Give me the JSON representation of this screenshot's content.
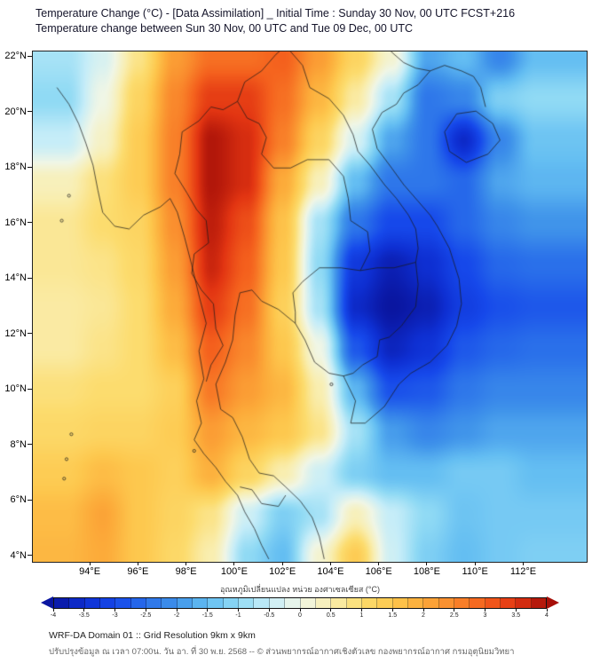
{
  "header": {
    "title_line1": "Temperature Change (°C) - [Data Assimilation] _ Initial Time : Sunday 30 Nov, 00 UTC FCST+216",
    "title_line2": "Temperature change between Sun 30 Nov, 00 UTC and Tue 09 Dec, 00 UTC"
  },
  "footer": {
    "line1": "WRF-DA Domain 01 :: Grid Resolution 9km x 9km",
    "line2": "ปรับปรุงข้อมูล ณ เวลา 07:00น. วัน อา. ที่ 30 พ.ย. 2568 -- © ส่วนพยากรณ์อากาศเชิงตัวเลข กองพยากรณ์อากาศ กรมอุตุนิยมวิทยา"
  },
  "chart_data": {
    "type": "heatmap",
    "title": "Temperature Change (°C) - [Data Assimilation] _ Initial Time : Sunday 30 Nov, 00 UTC FCST+216",
    "subtitle": "Temperature change between Sun 30 Nov, 00 UTC and Tue 09 Dec, 00 UTC",
    "units": "°C",
    "lon_range": [
      91.6,
      114.6
    ],
    "lat_range": [
      3.8,
      22.2
    ],
    "x_ticks": [
      {
        "lon": 94,
        "label": "94°E"
      },
      {
        "lon": 96,
        "label": "96°E"
      },
      {
        "lon": 98,
        "label": "98°E"
      },
      {
        "lon": 100,
        "label": "100°E"
      },
      {
        "lon": 102,
        "label": "102°E"
      },
      {
        "lon": 104,
        "label": "104°E"
      },
      {
        "lon": 106,
        "label": "106°E"
      },
      {
        "lon": 108,
        "label": "108°E"
      },
      {
        "lon": 110,
        "label": "110°E"
      },
      {
        "lon": 112,
        "label": "112°E"
      }
    ],
    "y_ticks": [
      {
        "lat": 22,
        "label": "22°N"
      },
      {
        "lat": 20,
        "label": "20°N"
      },
      {
        "lat": 18,
        "label": "18°N"
      },
      {
        "lat": 16,
        "label": "16°N"
      },
      {
        "lat": 14,
        "label": "14°N"
      },
      {
        "lat": 12,
        "label": "12°N"
      },
      {
        "lat": 10,
        "label": "10°N"
      },
      {
        "lat": 8,
        "label": "8°N"
      },
      {
        "lat": 6,
        "label": "6°N"
      },
      {
        "lat": 4,
        "label": "4°N"
      }
    ],
    "grid_lons": [
      93,
      94.5,
      96,
      97.5,
      99,
      100.5,
      102,
      103.5,
      105,
      106.5,
      108,
      109.5,
      111,
      112.5
    ],
    "grid_lats": [
      22,
      20.5,
      19,
      17.5,
      16,
      14.5,
      13,
      11.5,
      10,
      8.5,
      7,
      5.5,
      4
    ],
    "values": [
      [
        -0.8,
        -0.3,
        0.8,
        2.2,
        2.8,
        2.8,
        3.0,
        2.2,
        1.2,
        0.2,
        -1.8,
        -1.5,
        -2.2,
        -1.5
      ],
      [
        -1.0,
        0.0,
        1.2,
        2.5,
        3.4,
        3.4,
        2.8,
        1.8,
        0.6,
        -0.8,
        -2.4,
        -2.2,
        -1.2,
        -1.0
      ],
      [
        -0.5,
        0.3,
        1.4,
        2.6,
        3.9,
        3.6,
        2.6,
        1.2,
        -0.3,
        -1.8,
        -2.4,
        -3.6,
        -2.2,
        -1.4
      ],
      [
        0.4,
        0.9,
        1.4,
        2.6,
        3.9,
        3.6,
        2.0,
        0.4,
        -1.5,
        -2.4,
        -2.4,
        -2.6,
        -1.8,
        -1.6
      ],
      [
        0.7,
        1.0,
        1.2,
        2.4,
        3.8,
        3.2,
        1.6,
        -0.8,
        -2.4,
        -3.0,
        -3.0,
        -2.6,
        -2.2,
        -2.0
      ],
      [
        0.7,
        0.8,
        1.1,
        2.2,
        3.7,
        3.0,
        1.5,
        -1.0,
        -3.3,
        -3.8,
        -3.5,
        -3.0,
        -2.6,
        -2.5
      ],
      [
        0.6,
        0.7,
        1.0,
        2.0,
        3.4,
        2.8,
        1.3,
        -0.8,
        -3.6,
        -4.0,
        -3.8,
        -3.2,
        -2.9,
        -2.8
      ],
      [
        0.6,
        0.8,
        1.0,
        1.7,
        3.0,
        2.5,
        1.5,
        0.0,
        -2.8,
        -3.7,
        -3.4,
        -2.8,
        -2.6,
        -2.5
      ],
      [
        0.9,
        1.0,
        1.0,
        1.3,
        2.7,
        2.2,
        1.8,
        0.5,
        -1.6,
        -2.9,
        -2.8,
        -2.4,
        -2.2,
        -2.2
      ],
      [
        1.1,
        1.2,
        1.2,
        1.4,
        2.2,
        1.8,
        1.5,
        0.8,
        -0.8,
        -1.9,
        -2.2,
        -2.0,
        -1.8,
        -1.8
      ],
      [
        1.4,
        1.7,
        1.5,
        1.3,
        1.9,
        1.2,
        0.5,
        -0.4,
        -1.2,
        -1.5,
        -1.5,
        -1.3,
        -1.3,
        -1.5
      ],
      [
        1.7,
        2.1,
        1.5,
        1.2,
        0.8,
        -0.4,
        -1.2,
        -0.8,
        0.4,
        -0.5,
        -1.0,
        -1.4,
        -1.3,
        -1.3
      ],
      [
        1.8,
        2.0,
        1.5,
        1.1,
        0.5,
        -1.0,
        -1.5,
        0.2,
        1.4,
        -0.4,
        -1.2,
        -1.5,
        -1.3,
        -1.2
      ]
    ],
    "colorbar": {
      "label": "อุณหภูมิเปลี่ยนแปลง หน่วย องศาเซลเซียส (°C)",
      "range": [
        -4,
        4
      ],
      "segment_step": 0.25,
      "tick_values": [
        -4,
        -3.5,
        -3,
        -2.5,
        -2,
        -1.5,
        -1,
        -0.5,
        0,
        0.5,
        1,
        1.5,
        2,
        2.5,
        3,
        3.5,
        4
      ],
      "stops": [
        {
          "v": -4.0,
          "c": "#0a16a0"
        },
        {
          "v": -3.5,
          "c": "#0e2fd2"
        },
        {
          "v": -3.0,
          "c": "#1648ea"
        },
        {
          "v": -2.5,
          "c": "#2a70ea"
        },
        {
          "v": -2.0,
          "c": "#4094ea"
        },
        {
          "v": -1.5,
          "c": "#64bef2"
        },
        {
          "v": -1.0,
          "c": "#90daf4"
        },
        {
          "v": -0.5,
          "c": "#c6edf8"
        },
        {
          "v": 0.0,
          "c": "#f0f6e6"
        },
        {
          "v": 0.5,
          "c": "#f9eeb0"
        },
        {
          "v": 1.0,
          "c": "#fcdc6e"
        },
        {
          "v": 1.5,
          "c": "#fdc84e"
        },
        {
          "v": 2.0,
          "c": "#fcab3a"
        },
        {
          "v": 2.5,
          "c": "#f9882c"
        },
        {
          "v": 3.0,
          "c": "#f4601d"
        },
        {
          "v": 3.5,
          "c": "#e23512"
        },
        {
          "v": 4.0,
          "c": "#a60f08"
        }
      ]
    }
  }
}
